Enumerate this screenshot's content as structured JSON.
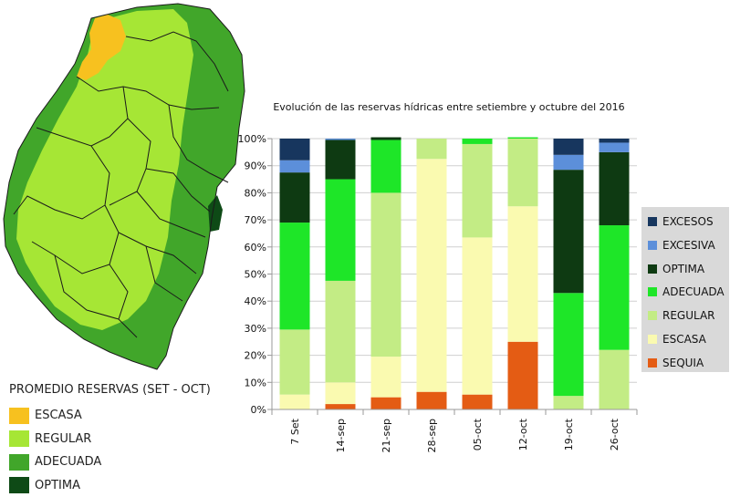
{
  "map": {
    "legend": {
      "title": "PROMEDIO RESERVAS (SET - OCT)",
      "items": [
        {
          "label": "ESCASA",
          "color": "#F7C11F"
        },
        {
          "label": "REGULAR",
          "color": "#A6E635"
        },
        {
          "label": "ADECUADA",
          "color": "#41A62A"
        },
        {
          "label": "OPTIMA",
          "color": "#0E4A16"
        }
      ]
    }
  },
  "chart_data": {
    "type": "bar",
    "stacked": true,
    "title": "Evolución de las reservas hídricas entre setiembre y octubre del 2016",
    "categories": [
      "7 Set",
      "14-sep",
      "21-sep",
      "28-sep",
      "05-oct",
      "12-oct",
      "19-oct",
      "26-oct"
    ],
    "ylim": [
      0,
      100
    ],
    "yticks": [
      "0%",
      "10%",
      "20%",
      "30%",
      "40%",
      "50%",
      "60%",
      "70%",
      "80%",
      "90%",
      "100%"
    ],
    "series": [
      {
        "name": "SEQUIA",
        "color": "#E45C14",
        "values": [
          0,
          2,
          4.5,
          6.5,
          5.5,
          25,
          0,
          0
        ]
      },
      {
        "name": "ESCASA",
        "color": "#FAFAB0",
        "values": [
          5.5,
          8,
          15,
          86,
          58,
          50,
          0,
          0
        ]
      },
      {
        "name": "REGULAR",
        "color": "#C3EC85",
        "values": [
          24,
          37.5,
          60.5,
          7.5,
          34.5,
          25,
          5,
          22
        ]
      },
      {
        "name": "ADECUADA",
        "color": "#1EE628",
        "values": [
          39.5,
          37.5,
          19.5,
          0,
          2,
          0.5,
          38,
          46
        ]
      },
      {
        "name": "OPTIMA",
        "color": "#0E3A12",
        "values": [
          18.5,
          14.5,
          1,
          0,
          0,
          0,
          45.5,
          27
        ]
      },
      {
        "name": "EXCESIVA",
        "color": "#5C8FDA",
        "values": [
          4.5,
          0.5,
          0,
          0,
          0,
          0,
          5.5,
          3.5
        ]
      },
      {
        "name": "EXCESOS",
        "color": "#17365E",
        "values": [
          8,
          0,
          0,
          0,
          0,
          0,
          6,
          1.5
        ]
      }
    ],
    "legend_order": [
      "EXCESOS",
      "EXCESIVA",
      "OPTIMA",
      "ADECUADA",
      "REGULAR",
      "ESCASA",
      "SEQUIA"
    ],
    "legend_position": "right"
  }
}
